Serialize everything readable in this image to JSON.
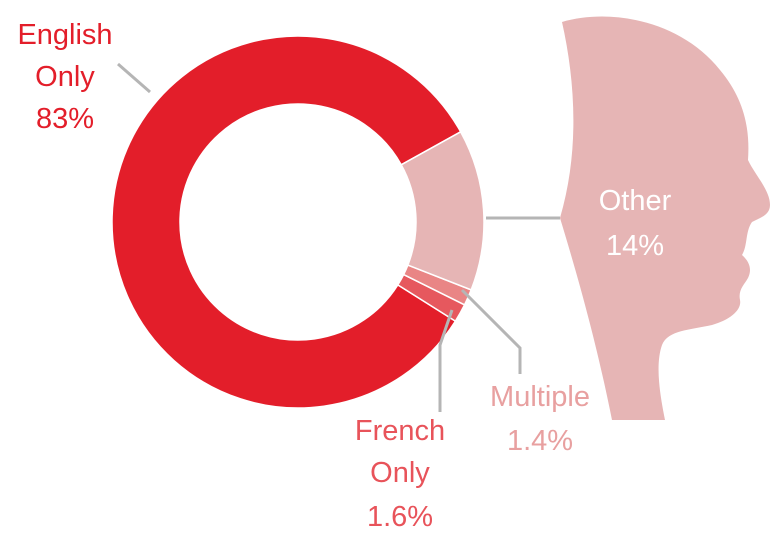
{
  "chart_data": {
    "type": "donut",
    "categories": [
      "Other",
      "Multiple",
      "French Only",
      "English Only"
    ],
    "values": [
      14,
      1.4,
      1.6,
      83
    ],
    "value_labels": [
      "14%",
      "1.4%",
      "1.6%",
      "83%"
    ],
    "colors": [
      "#e6b5b5",
      "#e98585",
      "#e6585e",
      "#e31e2a"
    ]
  }
}
